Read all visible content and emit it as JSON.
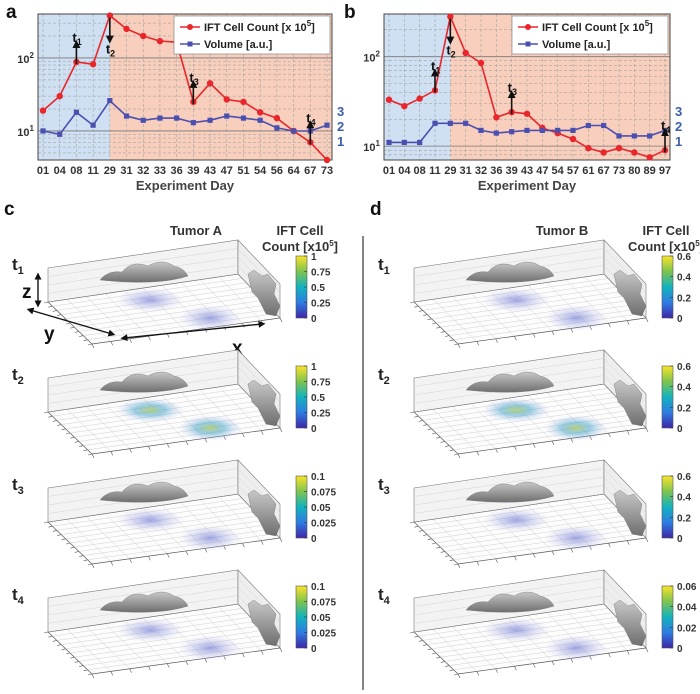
{
  "figure": {
    "panel_labels": {
      "a": "a",
      "b": "b",
      "c": "c",
      "d": "d"
    },
    "colors": {
      "ift": "#e8262b",
      "volume": "#4b50b0",
      "pre_bg": "#cfe0f2",
      "post_bg": "#f8cfbd",
      "volume_marks": "#3d5fa8",
      "surface": "#8a8a8a"
    }
  },
  "chart_data": [
    {
      "id": "a",
      "type": "line",
      "xlabel": "Experiment Day",
      "categories": [
        "01",
        "04",
        "08",
        "11",
        "29",
        "31",
        "32",
        "33",
        "36",
        "39",
        "43",
        "47",
        "51",
        "54",
        "56",
        "64",
        "67",
        "73"
      ],
      "yscale": "log",
      "ylim": [
        4,
        400
      ],
      "yticks": [
        "10^1",
        "10^2"
      ],
      "series": [
        {
          "name": "IFT Cell Count [x 10^5]",
          "values": [
            19,
            30,
            88,
            82,
            380,
            250,
            200,
            170,
            165,
            25,
            45,
            27,
            25,
            18,
            15,
            10,
            7,
            4
          ]
        },
        {
          "name": "Volume [a.u.]",
          "values": [
            10,
            9,
            18,
            12,
            26,
            16,
            14,
            15,
            15,
            13,
            14,
            16,
            15,
            14,
            11,
            10,
            10,
            12
          ]
        }
      ],
      "annotations": [
        {
          "label": "t",
          "sub": "1",
          "category": "08",
          "direction": "up"
        },
        {
          "label": "t",
          "sub": "2",
          "category": "29",
          "direction": "down"
        },
        {
          "label": "t",
          "sub": "3",
          "category": "39",
          "direction": "up"
        },
        {
          "label": "t",
          "sub": "4",
          "category": "67",
          "direction": "up"
        }
      ],
      "volume_marks": [
        "3",
        "2",
        "1"
      ],
      "shading": {
        "pre_end": "29",
        "post_end": "73"
      },
      "legend_position": "top-right"
    },
    {
      "id": "b",
      "type": "line",
      "xlabel": "Experiment Day",
      "categories": [
        "01",
        "04",
        "08",
        "11",
        "29",
        "31",
        "32",
        "36",
        "39",
        "43",
        "47",
        "54",
        "57",
        "61",
        "67",
        "73",
        "80",
        "89",
        "97"
      ],
      "yscale": "log",
      "ylim": [
        7,
        300
      ],
      "yticks": [
        "10^1",
        "10^2"
      ],
      "series": [
        {
          "name": "IFT Cell Count [x 10^5]",
          "values": [
            33,
            28,
            34,
            42,
            280,
            110,
            85,
            21,
            24,
            23,
            16,
            14,
            12,
            9.5,
            8.5,
            9.5,
            8.5,
            7.5,
            9
          ]
        },
        {
          "name": "Volume [a.u.]",
          "values": [
            11,
            11,
            11,
            18,
            18,
            18,
            15,
            14,
            14.5,
            15,
            15,
            15,
            15,
            17,
            17,
            13,
            13,
            13,
            15
          ]
        }
      ],
      "annotations": [
        {
          "label": "t",
          "sub": "1",
          "category": "11",
          "direction": "up"
        },
        {
          "label": "t",
          "sub": "2",
          "category": "29",
          "direction": "down"
        },
        {
          "label": "t",
          "sub": "3",
          "category": "39",
          "direction": "up"
        },
        {
          "label": "t",
          "sub": "4",
          "category": "97",
          "direction": "up"
        }
      ],
      "volume_marks": [
        "3",
        "2",
        "1"
      ],
      "shading": {
        "pre_end": "29",
        "post_end": "97"
      },
      "legend_position": "top-right"
    }
  ],
  "tumors": [
    {
      "id": "c",
      "title": "Tumor A",
      "cb_title": [
        "IFT Cell",
        "Count [x10^5]"
      ],
      "rows": [
        {
          "t": "t",
          "sub": "1",
          "ticks": [
            "1",
            "0.75",
            "0.5",
            "0.25",
            "0"
          ]
        },
        {
          "t": "t",
          "sub": "2",
          "ticks": [
            "1",
            "0.75",
            "0.5",
            "0.25",
            "0"
          ]
        },
        {
          "t": "t",
          "sub": "3",
          "ticks": [
            "0.1",
            "0.075",
            "0.05",
            "0.025",
            "0"
          ]
        },
        {
          "t": "t",
          "sub": "4",
          "ticks": [
            "0.1",
            "0.075",
            "0.05",
            "0.025",
            "0"
          ]
        }
      ],
      "axes": {
        "x": "x",
        "y": "y",
        "z": "z"
      }
    },
    {
      "id": "d",
      "title": "Tumor B",
      "cb_title": [
        "IFT Cell",
        "Count [x10^5]"
      ],
      "rows": [
        {
          "t": "t",
          "sub": "1",
          "ticks": [
            "0.6",
            "0.4",
            "0.2",
            "0"
          ]
        },
        {
          "t": "t",
          "sub": "2",
          "ticks": [
            "0.6",
            "0.4",
            "0.2",
            "0"
          ]
        },
        {
          "t": "t",
          "sub": "3",
          "ticks": [
            "0.6",
            "0.4",
            "0.2",
            "0"
          ]
        },
        {
          "t": "t",
          "sub": "4",
          "ticks": [
            "0.06",
            "0.04",
            "0.02",
            "0"
          ]
        }
      ]
    }
  ]
}
